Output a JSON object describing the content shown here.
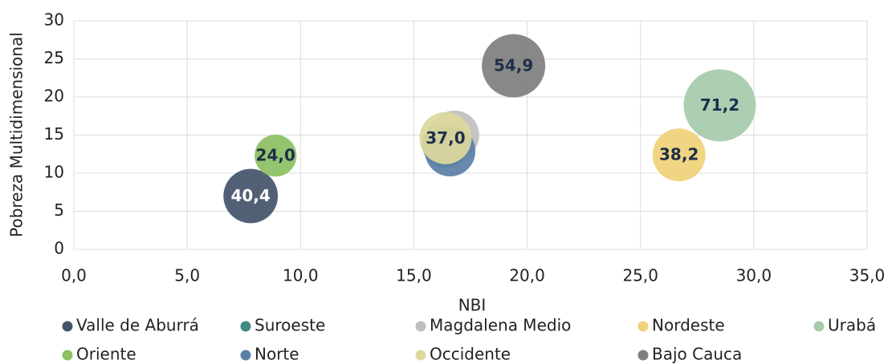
{
  "chart_data": {
    "type": "bubble",
    "x_label": "NBI",
    "y_label": "Pobreza Multidimensional",
    "xlim": [
      0,
      35
    ],
    "xticks": [
      {
        "value": 0,
        "label": "0,0"
      },
      {
        "value": 5,
        "label": "5,0"
      },
      {
        "value": 10,
        "label": "10,0"
      },
      {
        "value": 15,
        "label": "15,0"
      },
      {
        "value": 20,
        "label": "20,0"
      },
      {
        "value": 25,
        "label": "25,0"
      },
      {
        "value": 30,
        "label": "30,0"
      },
      {
        "value": 35,
        "label": "35,0"
      }
    ],
    "ylim": [
      0,
      30
    ],
    "yticks": [
      0,
      5,
      10,
      15,
      20,
      25,
      30
    ],
    "grid": true,
    "legend": "bottom",
    "series": [
      {
        "name": "Valle de Aburrá",
        "color": "#44546a",
        "label_color": "#ffffff",
        "x": [
          7.8
        ],
        "y": [
          7.0
        ],
        "size": [
          40.4
        ],
        "value_labels": [
          "40,4"
        ]
      },
      {
        "name": "Suroeste",
        "color": "#3f8a80",
        "x": [
          16.4
        ],
        "y": [
          13.8
        ],
        "size": [
          30
        ]
      },
      {
        "name": "Magdalena Medio",
        "color": "#bfbfbf",
        "x": [
          16.8
        ],
        "y": [
          15.0
        ],
        "size": [
          33
        ]
      },
      {
        "name": "Nordeste",
        "color": "#f0d27a",
        "label_color": "#1f2f4a",
        "x": [
          26.7
        ],
        "y": [
          12.4
        ],
        "size": [
          38.2
        ],
        "value_labels": [
          "38,2"
        ]
      },
      {
        "name": "Urabá",
        "color": "#a6cbab",
        "label_color": "#1f2f4a",
        "x": [
          28.5
        ],
        "y": [
          18.9
        ],
        "size": [
          71.2
        ],
        "value_labels": [
          "71,2"
        ]
      },
      {
        "name": "Oriente",
        "color": "#8cc063",
        "label_color": "#1f2f4a",
        "x": [
          8.9
        ],
        "y": [
          12.3
        ],
        "size": [
          24.0
        ],
        "value_labels": [
          "24,0"
        ]
      },
      {
        "name": "Norte",
        "color": "#5b80a8",
        "x": [
          16.6
        ],
        "y": [
          12.9
        ],
        "size": [
          35
        ]
      },
      {
        "name": "Occidente",
        "color": "#ddd89b",
        "label_color": "#1f2f4a",
        "x": [
          16.4
        ],
        "y": [
          14.6
        ],
        "size": [
          37.0
        ],
        "value_labels": [
          "37,0"
        ]
      },
      {
        "name": "Bajo Cauca",
        "color": "#7f7f7f",
        "label_color": "#1f2f4a",
        "x": [
          19.4
        ],
        "y": [
          24.1
        ],
        "size": [
          54.9
        ],
        "value_labels": [
          "54,9"
        ]
      }
    ]
  }
}
